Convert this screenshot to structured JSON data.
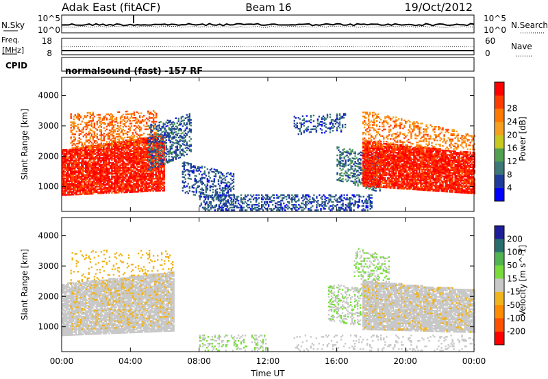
{
  "header": {
    "station": "Adak East (fitACF)",
    "beam": "Beam 16",
    "date": "19/Oct/2012"
  },
  "noise_panel": {
    "left_label": "N.Sky",
    "right_label": "N.Search",
    "left_ticks": [
      "10^5",
      "10^0"
    ],
    "right_ticks": [
      "10^5",
      "10^0"
    ]
  },
  "freq_panel": {
    "left_label_line1": "Freq.",
    "left_label_line2": "[MHz]",
    "left_ticks": [
      "18",
      "8"
    ],
    "right_label": "Nave",
    "right_ticks": [
      "60",
      "0"
    ]
  },
  "cpid": {
    "label": "CPID",
    "value": "normalsound (fast) -157 RF"
  },
  "colors": {
    "power_scale": [
      "#0000ff",
      "#1e3c9b",
      "#3c7878",
      "#50a050",
      "#c8c81e",
      "#f5a01e",
      "#ff7800",
      "#ff3c00",
      "#ff0000"
    ],
    "velocity_scale": [
      "#ff0000",
      "#ff5000",
      "#ff8c00",
      "#f0b41e",
      "#c8c8c8",
      "#78dc3c",
      "#50b450",
      "#286e6e",
      "#1e1e9b"
    ],
    "frame": "#000000"
  },
  "chart_data": [
    {
      "type": "heatmap",
      "name_in_figure": "power",
      "ylabel": "Slant Range [km]",
      "yticks": [
        "1000",
        "2000",
        "3000",
        "4000"
      ],
      "ylim": [
        180,
        4600
      ],
      "xlabel": "Time UT",
      "xticks": [
        "00:00",
        "04:00",
        "08:00",
        "12:00",
        "16:00",
        "20:00",
        "00:00"
      ],
      "xlim": [
        0,
        24
      ],
      "colorbar_label": "Power [dB]",
      "colorbar_ticks": [
        "4",
        "8",
        "12",
        "16",
        "20",
        "24",
        "28"
      ],
      "colorbar_range": [
        0,
        30
      ],
      "regions": [
        {
          "t": [
            0.0,
            6.0
          ],
          "r_low": [
            700,
            850
          ],
          "r_high": [
            2200,
            2700
          ],
          "value": 27,
          "density": 0.85,
          "note_band": "red"
        },
        {
          "t": [
            0.5,
            5.5
          ],
          "r_low": [
            2200,
            2400
          ],
          "r_high": [
            3400,
            3500
          ],
          "value": 22,
          "density": 0.35
        },
        {
          "t": [
            5.0,
            7.5
          ],
          "r_low": [
            1500,
            2100
          ],
          "r_high": [
            3000,
            3400
          ],
          "value": 7,
          "density": 0.45
        },
        {
          "t": [
            7.0,
            10.0
          ],
          "r_low": [
            800,
            400
          ],
          "r_high": [
            1800,
            1400
          ],
          "value": 6,
          "density": 0.35
        },
        {
          "t": [
            8.0,
            18.0
          ],
          "r_low": [
            200,
            200
          ],
          "r_high": [
            700,
            700
          ],
          "value": 6,
          "density": 0.4
        },
        {
          "t": [
            13.5,
            16.5
          ],
          "r_low": [
            2700,
            2800
          ],
          "r_high": [
            3300,
            3400
          ],
          "value": 6,
          "density": 0.3
        },
        {
          "t": [
            16.0,
            18.5
          ],
          "r_low": [
            1200,
            800
          ],
          "r_high": [
            2300,
            2000
          ],
          "value": 8,
          "density": 0.4
        },
        {
          "t": [
            17.5,
            24.0
          ],
          "r_low": [
            1000,
            750
          ],
          "r_high": [
            2500,
            2100
          ],
          "value": 27,
          "density": 0.85
        },
        {
          "t": [
            17.5,
            24.0
          ],
          "r_low": [
            2300,
            2200
          ],
          "r_high": [
            3500,
            2700
          ],
          "value": 21,
          "density": 0.3
        }
      ]
    },
    {
      "type": "heatmap",
      "name_in_figure": "velocity",
      "ylabel": "Slant Range [km]",
      "yticks": [
        "1000",
        "2000",
        "3000",
        "4000"
      ],
      "ylim": [
        180,
        4600
      ],
      "xlabel": "Time UT",
      "xticks": [
        "00:00",
        "04:00",
        "08:00",
        "12:00",
        "16:00",
        "20:00",
        "00:00"
      ],
      "xlim": [
        0,
        24
      ],
      "colorbar_label": "Velocity [m s^-1]",
      "colorbar_ticks": [
        "200",
        "100",
        "50",
        "15",
        "-15",
        "-50",
        "-100",
        "-200"
      ],
      "colorbar_range": [
        -250,
        250
      ],
      "regions": [
        {
          "t": [
            0.0,
            6.5
          ],
          "r_low": [
            700,
            850
          ],
          "r_high": [
            2400,
            2800
          ],
          "value": 0,
          "density": 0.85
        },
        {
          "t": [
            0.5,
            6.5
          ],
          "r_low": [
            900,
            1000
          ],
          "r_high": [
            3500,
            3500
          ],
          "value": -60,
          "density": 0.12
        },
        {
          "t": [
            8.0,
            12.0
          ],
          "r_low": [
            200,
            200
          ],
          "r_high": [
            700,
            700
          ],
          "value": 25,
          "density": 0.25
        },
        {
          "t": [
            13.5,
            24.0
          ],
          "r_low": [
            200,
            200
          ],
          "r_high": [
            700,
            700
          ],
          "value": 0,
          "density": 0.12
        },
        {
          "t": [
            15.5,
            18.5
          ],
          "r_low": [
            1200,
            900
          ],
          "r_high": [
            2400,
            2200
          ],
          "value": 25,
          "density": 0.35
        },
        {
          "t": [
            17.0,
            19.0
          ],
          "r_low": [
            2200,
            2200
          ],
          "r_high": [
            3600,
            3300
          ],
          "value": 30,
          "density": 0.25
        },
        {
          "t": [
            17.5,
            24.0
          ],
          "r_low": [
            900,
            800
          ],
          "r_high": [
            2500,
            2200
          ],
          "value": 0,
          "density": 0.85
        },
        {
          "t": [
            17.5,
            24.0
          ],
          "r_low": [
            900,
            800
          ],
          "r_high": [
            2500,
            2200
          ],
          "value": -60,
          "density": 0.08
        }
      ]
    }
  ]
}
